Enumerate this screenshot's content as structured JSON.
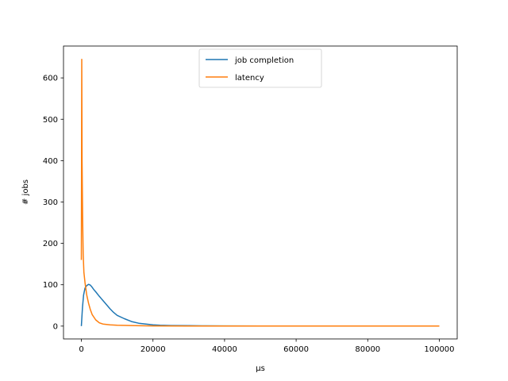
{
  "chart_data": {
    "type": "line",
    "title": "",
    "xlabel": "µs",
    "ylabel": "# jobs",
    "xlim": [
      -5000,
      105000
    ],
    "ylim": [
      -31,
      677
    ],
    "x_ticks": [
      0,
      20000,
      40000,
      60000,
      80000,
      100000
    ],
    "x_tick_labels": [
      "0",
      "20000",
      "40000",
      "60000",
      "80000",
      "100000"
    ],
    "y_ticks": [
      0,
      100,
      200,
      300,
      400,
      500,
      600
    ],
    "y_tick_labels": [
      "0",
      "100",
      "200",
      "300",
      "400",
      "500",
      "600"
    ],
    "grid": false,
    "legend_position": "top-center",
    "series": [
      {
        "name": "job completion",
        "color": "#1f77b4",
        "x": [
          0,
          300,
          600,
          1000,
          1500,
          2000,
          2500,
          3000,
          3500,
          4000,
          5000,
          6000,
          7000,
          8000,
          9000,
          10000,
          12000,
          14000,
          16000,
          18000,
          20000,
          22000,
          25000,
          30000,
          35000,
          40000,
          50000,
          60000,
          70000,
          80000,
          90000,
          100000
        ],
        "values": [
          0,
          45,
          75,
          92,
          98,
          101,
          99,
          94,
          88,
          83,
          72,
          62,
          52,
          42,
          33,
          26,
          18,
          11,
          7,
          5,
          3,
          2,
          1.5,
          1,
          0.6,
          0.4,
          0.2,
          0.1,
          0,
          0,
          0,
          0
        ]
      },
      {
        "name": "latency",
        "color": "#ff7f0e",
        "x": [
          0,
          100,
          200,
          350,
          500,
          700,
          1000,
          1500,
          2000,
          2500,
          3000,
          4000,
          5000,
          6000,
          8000,
          10000,
          15000,
          20000,
          30000,
          40000,
          60000,
          80000,
          100000
        ],
        "values": [
          160,
          645,
          400,
          260,
          175,
          130,
          105,
          75,
          55,
          40,
          28,
          15,
          8,
          5,
          3,
          2,
          1,
          0.5,
          0.2,
          0.1,
          0,
          0,
          0
        ]
      }
    ]
  }
}
